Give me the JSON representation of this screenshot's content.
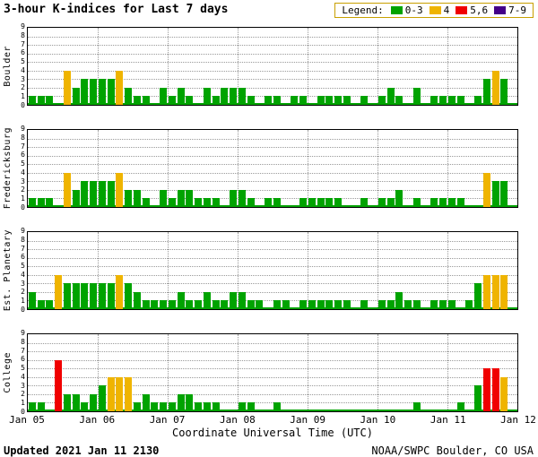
{
  "header": {
    "title": "3-hour K-indices for Last 7 days",
    "legend_label": "Legend:"
  },
  "footer": {
    "updated": "Updated 2021 Jan 11 2130",
    "source": "NOAA/SWPC Boulder, CO USA"
  },
  "colors": {
    "green": "#00A300",
    "yellow": "#EFB400",
    "red": "#F00000",
    "purple": "#440088",
    "grid": "#9a9a9a",
    "legend_border": "#C8A000"
  },
  "chart_data": {
    "type": "bar",
    "title": "3-hour K-indices for Last 7 days",
    "xlabel": "Coordinate Universal Time (UTC)",
    "x_tick_labels": [
      "Jan 05",
      "Jan 06",
      "Jan 07",
      "Jan 08",
      "Jan 09",
      "Jan 10",
      "Jan 11",
      "Jan 12"
    ],
    "days": 7,
    "bars_per_day": 8,
    "ylim": [
      0,
      9
    ],
    "y_tick_labels": [
      "0",
      "1",
      "2",
      "3",
      "4",
      "5",
      "6",
      "7",
      "8",
      "9"
    ],
    "grid": true,
    "legend_position": "top-right",
    "legend": [
      {
        "label": "0-3",
        "color_key": "green"
      },
      {
        "label": "4",
        "color_key": "yellow"
      },
      {
        "label": "5,6",
        "color_key": "red"
      },
      {
        "label": "7-9",
        "color_key": "purple"
      }
    ],
    "value_color_rule": "K 0-3 green, K 4 yellow, K 5-6 red, K 7-9 purple",
    "panels": [
      {
        "station": "Boulder",
        "values": [
          1,
          1,
          1,
          0,
          4,
          2,
          3,
          3,
          3,
          3,
          4,
          2,
          1,
          1,
          0,
          2,
          1,
          2,
          1,
          0,
          2,
          1,
          2,
          2,
          2,
          1,
          0,
          1,
          1,
          0,
          1,
          1,
          0,
          1,
          1,
          1,
          1,
          0,
          1,
          0,
          1,
          2,
          1,
          0,
          2,
          0,
          1,
          1,
          1,
          1,
          0,
          1,
          3,
          4,
          3
        ]
      },
      {
        "station": "Fredericksburg",
        "values": [
          1,
          1,
          1,
          0,
          4,
          2,
          3,
          3,
          3,
          3,
          4,
          2,
          2,
          1,
          0,
          2,
          1,
          2,
          2,
          1,
          1,
          1,
          0,
          2,
          2,
          1,
          0,
          1,
          1,
          0,
          0,
          1,
          1,
          1,
          1,
          1,
          0,
          0,
          1,
          0,
          1,
          1,
          2,
          0,
          1,
          0,
          1,
          1,
          1,
          1,
          0,
          0,
          4,
          3,
          3
        ]
      },
      {
        "station": "Est. Planetary",
        "values": [
          2,
          1,
          1,
          4,
          3,
          3,
          3,
          3,
          3,
          3,
          4,
          3,
          2,
          1,
          1,
          1,
          1,
          2,
          1,
          1,
          2,
          1,
          1,
          2,
          2,
          1,
          1,
          0,
          1,
          1,
          0,
          1,
          1,
          1,
          1,
          1,
          1,
          0,
          1,
          0,
          1,
          1,
          2,
          1,
          1,
          0,
          1,
          1,
          1,
          0,
          1,
          3,
          4,
          4,
          4
        ]
      },
      {
        "station": "College",
        "values": [
          1,
          1,
          0,
          6,
          2,
          2,
          1,
          2,
          3,
          4,
          4,
          4,
          1,
          2,
          1,
          1,
          1,
          2,
          2,
          1,
          1,
          1,
          0,
          0,
          1,
          1,
          0,
          0,
          1,
          0,
          0,
          0,
          0,
          0,
          0,
          0,
          0,
          0,
          0,
          0,
          0,
          0,
          0,
          0,
          1,
          0,
          0,
          0,
          0,
          1,
          0,
          3,
          5,
          5,
          4
        ]
      }
    ]
  }
}
